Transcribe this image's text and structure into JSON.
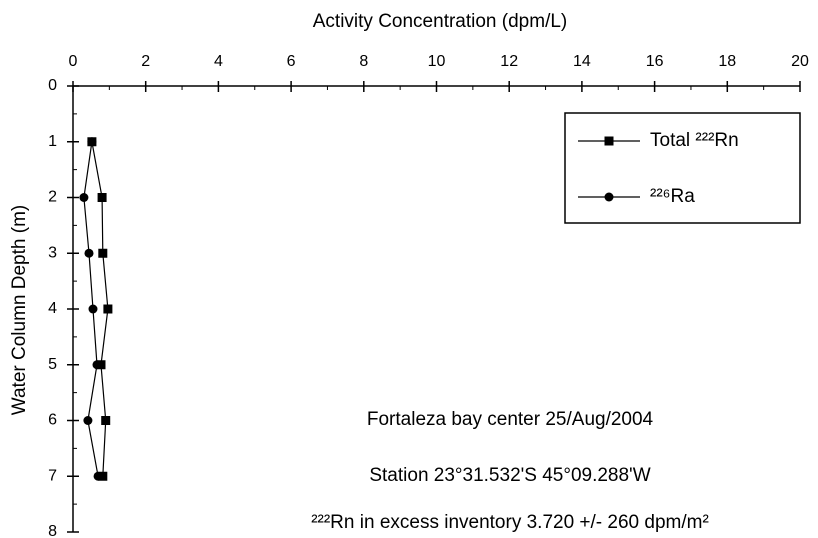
{
  "chart_data": {
    "type": "line",
    "x_label": "Activity Concentration (dpm/L)",
    "y_label": "Water Column Depth (m)",
    "y": [
      1,
      2,
      3,
      4,
      5,
      6,
      7
    ],
    "series": [
      {
        "name": "Total ²²²Rn",
        "color": "#000000",
        "marker": "square",
        "values": [
          0.52,
          0.8,
          0.82,
          0.96,
          0.77,
          0.9,
          0.82
        ]
      },
      {
        "name": "²²⁶Ra",
        "color": "#000000",
        "marker": "circle",
        "values": [
          0.52,
          0.3,
          0.44,
          0.55,
          0.66,
          0.41,
          0.69
        ]
      }
    ],
    "xlim": [
      0,
      20
    ],
    "xticks": [
      0,
      2,
      4,
      6,
      8,
      10,
      12,
      14,
      16,
      18,
      20
    ],
    "ylim": [
      0,
      8
    ],
    "yticks": [
      0,
      1,
      2,
      3,
      4,
      5,
      6,
      7,
      8
    ],
    "y_inverted": true,
    "x_axis_position": "top",
    "legend": "upper right",
    "annotations": [
      "Fortaleza bay center  25/Aug/2004",
      "Station 23°31.532'S  45°09.288'W",
      "²²²Rn in excess inventory 3.720 +/- 260 dpm/m²"
    ]
  }
}
